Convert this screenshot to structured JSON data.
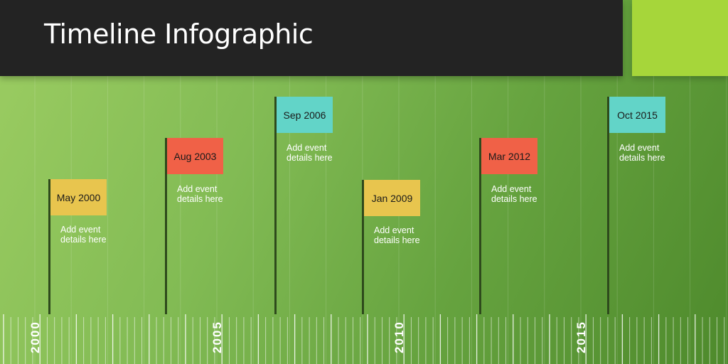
{
  "header": {
    "title": "Timeline Infographic"
  },
  "colors": {
    "yellow": "#e8c54e",
    "red": "#f06147",
    "teal": "#62d4c8",
    "accent": "#a6d63a",
    "titlebar": "#232323"
  },
  "events": [
    {
      "date": "May 2000",
      "details": [
        "Add event",
        "details here"
      ],
      "color": "#e8c54e"
    },
    {
      "date": "Aug 2003",
      "details": [
        "Add event",
        "details here"
      ],
      "color": "#f06147"
    },
    {
      "date": "Sep 2006",
      "details": [
        "Add event",
        "details here"
      ],
      "color": "#62d4c8"
    },
    {
      "date": "Jan 2009",
      "details": [
        "Add event",
        "details here"
      ],
      "color": "#e8c54e"
    },
    {
      "date": "Mar 2012",
      "details": [
        "Add event",
        "details here"
      ],
      "color": "#f06147"
    },
    {
      "date": "Oct 2015",
      "details": [
        "Add event",
        "details here"
      ],
      "color": "#62d4c8"
    }
  ],
  "axis": {
    "years": [
      "2000",
      "2005",
      "2010",
      "2015"
    ]
  }
}
